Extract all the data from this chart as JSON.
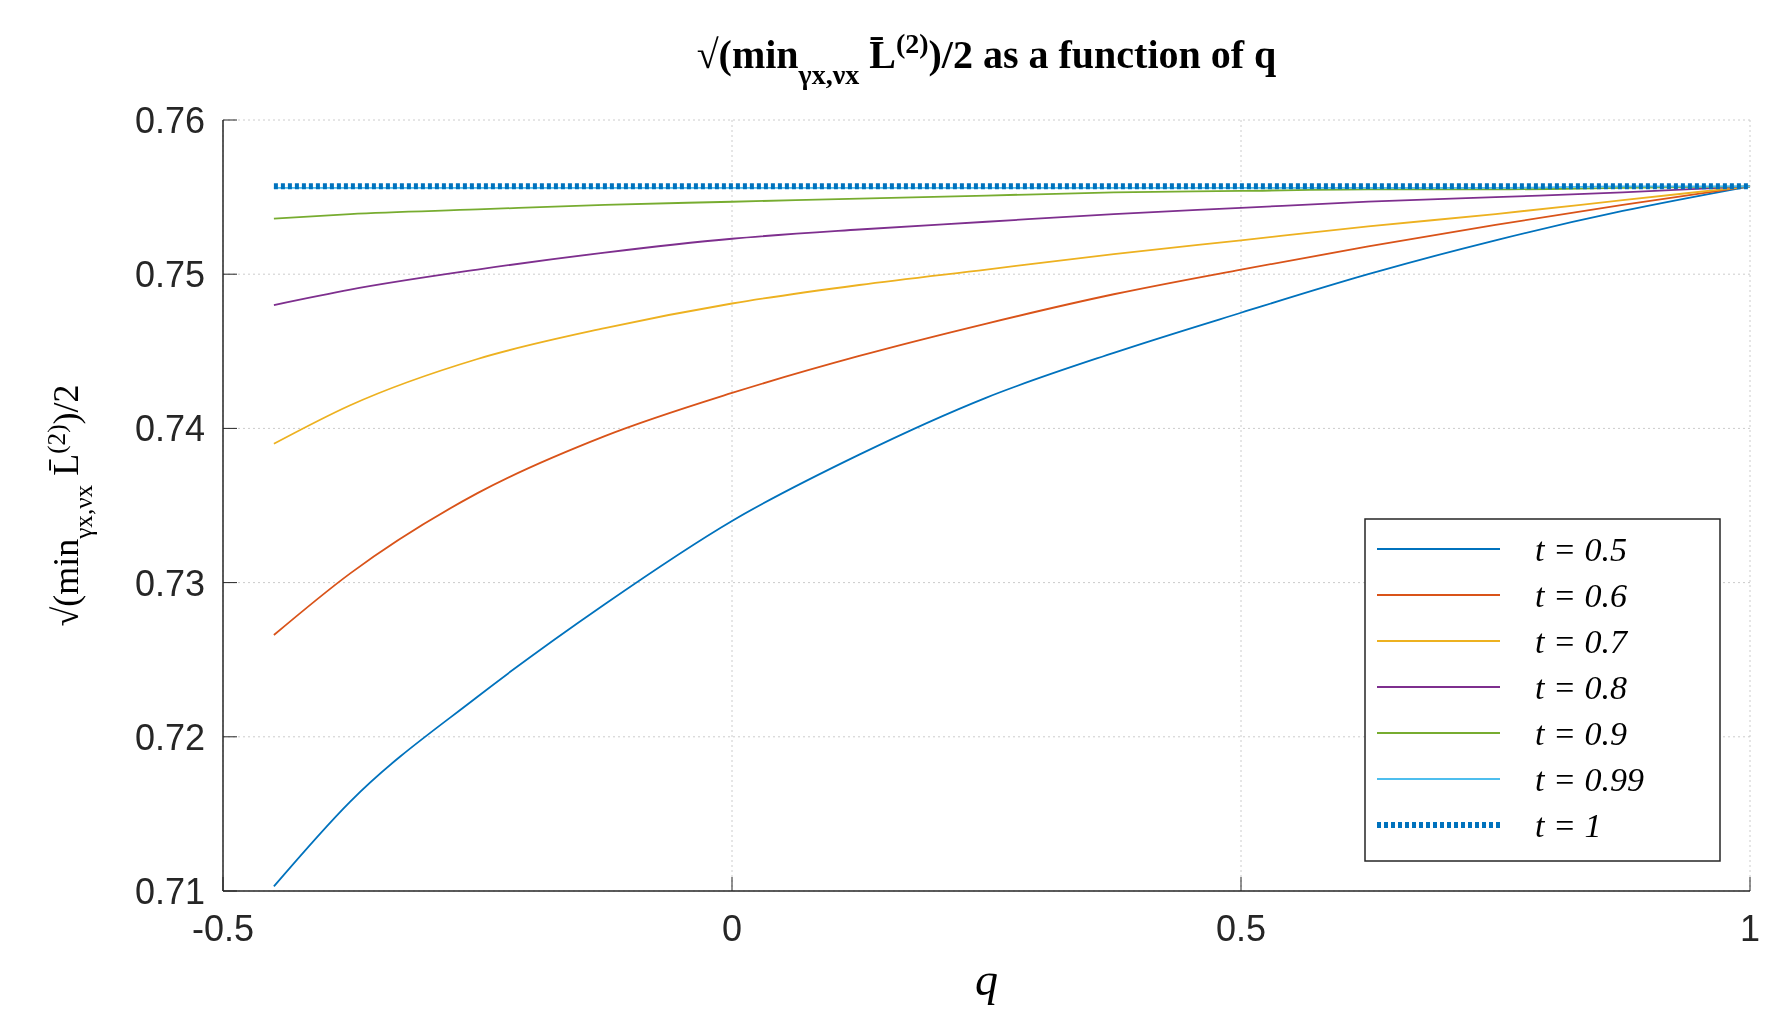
{
  "chart_data": {
    "type": "line",
    "title": "√(min$_{γx,νx}$ L̄$^{(2)}$)/2 as a function of q",
    "xlabel": "q",
    "ylabel": "√(min$_{γx,νx}$ L̄$^{(2)}$)/2",
    "x": [
      -0.45,
      -0.375,
      -0.25,
      -0.125,
      0,
      0.125,
      0.25,
      0.375,
      0.5,
      0.625,
      0.75,
      0.875,
      1
    ],
    "xlim": [
      -0.5,
      1
    ],
    "xticks": [
      -0.5,
      0,
      0.5,
      1
    ],
    "ylim": [
      0.71,
      0.76
    ],
    "yticks": [
      0.71,
      0.72,
      0.73,
      0.74,
      0.75,
      0.76
    ],
    "grid": true,
    "legend": "bottom right",
    "line_style": "solid",
    "marker": "none",
    "series": [
      {
        "name": "t = 0.5",
        "color": "#0072bd",
        "values": [
          0.7103,
          0.7158,
          0.7226,
          0.7286,
          0.734,
          0.7383,
          0.742,
          0.7449,
          0.7475,
          0.75,
          0.7522,
          0.7541,
          0.7557
        ]
      },
      {
        "name": "t = 0.6",
        "color": "#d95319",
        "values": [
          0.7266,
          0.7306,
          0.7358,
          0.7395,
          0.7423,
          0.7447,
          0.7468,
          0.7487,
          0.7503,
          0.7518,
          0.7532,
          0.7545,
          0.7557
        ]
      },
      {
        "name": "t = 0.7",
        "color": "#edb120",
        "values": [
          0.739,
          0.7415,
          0.7445,
          0.7465,
          0.7481,
          0.7493,
          0.7503,
          0.7513,
          0.7522,
          0.7531,
          0.7539,
          0.7548,
          0.7557
        ]
      },
      {
        "name": "t = 0.8",
        "color": "#7e2f8e",
        "values": [
          0.748,
          0.749,
          0.7503,
          0.7514,
          0.7523,
          0.7529,
          0.7534,
          0.7539,
          0.7543,
          0.7547,
          0.755,
          0.7553,
          0.7557
        ]
      },
      {
        "name": "t = 0.9",
        "color": "#77ac30",
        "values": [
          0.7536,
          0.7539,
          0.7542,
          0.7545,
          0.7547,
          0.7549,
          0.7551,
          0.7553,
          0.7554,
          0.7555,
          0.7555,
          0.7556,
          0.7557
        ]
      },
      {
        "name": "t = 0.99",
        "color": "#4dbeee",
        "values": [
          0.7556,
          0.7556,
          0.7556,
          0.7556,
          0.7556,
          0.7556,
          0.7556,
          0.7556,
          0.7556,
          0.7556,
          0.7556,
          0.7557,
          0.7557
        ]
      },
      {
        "name": "t = 1",
        "color": "#0072bd",
        "line_style": "dotted",
        "values": [
          0.7557,
          0.7557,
          0.7557,
          0.7557,
          0.7557,
          0.7557,
          0.7557,
          0.7557,
          0.7557,
          0.7557,
          0.7557,
          0.7557,
          0.7557
        ]
      }
    ]
  }
}
